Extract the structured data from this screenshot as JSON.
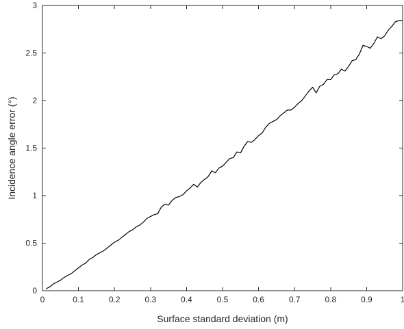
{
  "chart_data": {
    "type": "line",
    "title": "",
    "xlabel": "Surface standard deviation (m)",
    "ylabel": "Incidence angle error (°)",
    "xlim": [
      0,
      1
    ],
    "ylim": [
      0,
      3
    ],
    "grid": false,
    "legend": "none",
    "x_ticks": [
      0,
      0.1,
      0.2,
      0.3,
      0.4,
      0.5,
      0.6,
      0.7,
      0.8,
      0.9,
      1
    ],
    "x_tick_labels": [
      "0",
      "0.1",
      "0.2",
      "0.3",
      "0.4",
      "0.5",
      "0.6",
      "0.7",
      "0.8",
      "0.9",
      "1"
    ],
    "y_ticks": [
      0,
      0.5,
      1,
      1.5,
      2,
      2.5,
      3
    ],
    "y_tick_labels": [
      "0",
      "0.5",
      "1",
      "1.5",
      "2",
      "2.5",
      "3"
    ],
    "colors": {
      "axes": "#262626",
      "line": "#000000",
      "background": "#ffffff"
    },
    "series": [
      {
        "x": [
          0.01,
          0.02,
          0.03,
          0.04,
          0.05,
          0.06,
          0.07,
          0.08,
          0.09,
          0.1,
          0.11,
          0.12,
          0.13,
          0.14,
          0.15,
          0.16,
          0.17,
          0.18,
          0.19,
          0.2,
          0.21,
          0.22,
          0.23,
          0.24,
          0.25,
          0.26,
          0.27,
          0.28,
          0.29,
          0.3,
          0.31,
          0.32,
          0.33,
          0.34,
          0.35,
          0.36,
          0.37,
          0.38,
          0.39,
          0.4,
          0.41,
          0.42,
          0.43,
          0.44,
          0.45,
          0.46,
          0.47,
          0.48,
          0.49,
          0.5,
          0.51,
          0.52,
          0.53,
          0.54,
          0.55,
          0.56,
          0.57,
          0.58,
          0.59,
          0.6,
          0.61,
          0.62,
          0.63,
          0.64,
          0.65,
          0.66,
          0.67,
          0.68,
          0.69,
          0.7,
          0.71,
          0.72,
          0.73,
          0.74,
          0.75,
          0.76,
          0.77,
          0.78,
          0.79,
          0.8,
          0.81,
          0.82,
          0.83,
          0.84,
          0.85,
          0.86,
          0.87,
          0.88,
          0.89,
          0.9,
          0.91,
          0.92,
          0.93,
          0.94,
          0.95,
          0.96,
          0.97,
          0.98,
          0.99,
          1.0
        ],
        "y": [
          0.02,
          0.04,
          0.07,
          0.09,
          0.11,
          0.14,
          0.16,
          0.18,
          0.21,
          0.24,
          0.27,
          0.29,
          0.33,
          0.35,
          0.38,
          0.4,
          0.42,
          0.45,
          0.48,
          0.51,
          0.53,
          0.56,
          0.59,
          0.62,
          0.64,
          0.67,
          0.69,
          0.72,
          0.76,
          0.78,
          0.8,
          0.81,
          0.88,
          0.91,
          0.9,
          0.95,
          0.98,
          0.99,
          1.01,
          1.05,
          1.08,
          1.12,
          1.09,
          1.14,
          1.17,
          1.2,
          1.26,
          1.24,
          1.29,
          1.31,
          1.35,
          1.39,
          1.4,
          1.46,
          1.45,
          1.52,
          1.57,
          1.56,
          1.59,
          1.63,
          1.66,
          1.72,
          1.76,
          1.78,
          1.8,
          1.84,
          1.87,
          1.9,
          1.9,
          1.93,
          1.97,
          2.0,
          2.05,
          2.1,
          2.14,
          2.08,
          2.15,
          2.17,
          2.22,
          2.22,
          2.27,
          2.28,
          2.33,
          2.31,
          2.36,
          2.42,
          2.43,
          2.49,
          2.58,
          2.57,
          2.55,
          2.6,
          2.67,
          2.65,
          2.68,
          2.74,
          2.78,
          2.83,
          2.84,
          2.84
        ]
      }
    ]
  }
}
